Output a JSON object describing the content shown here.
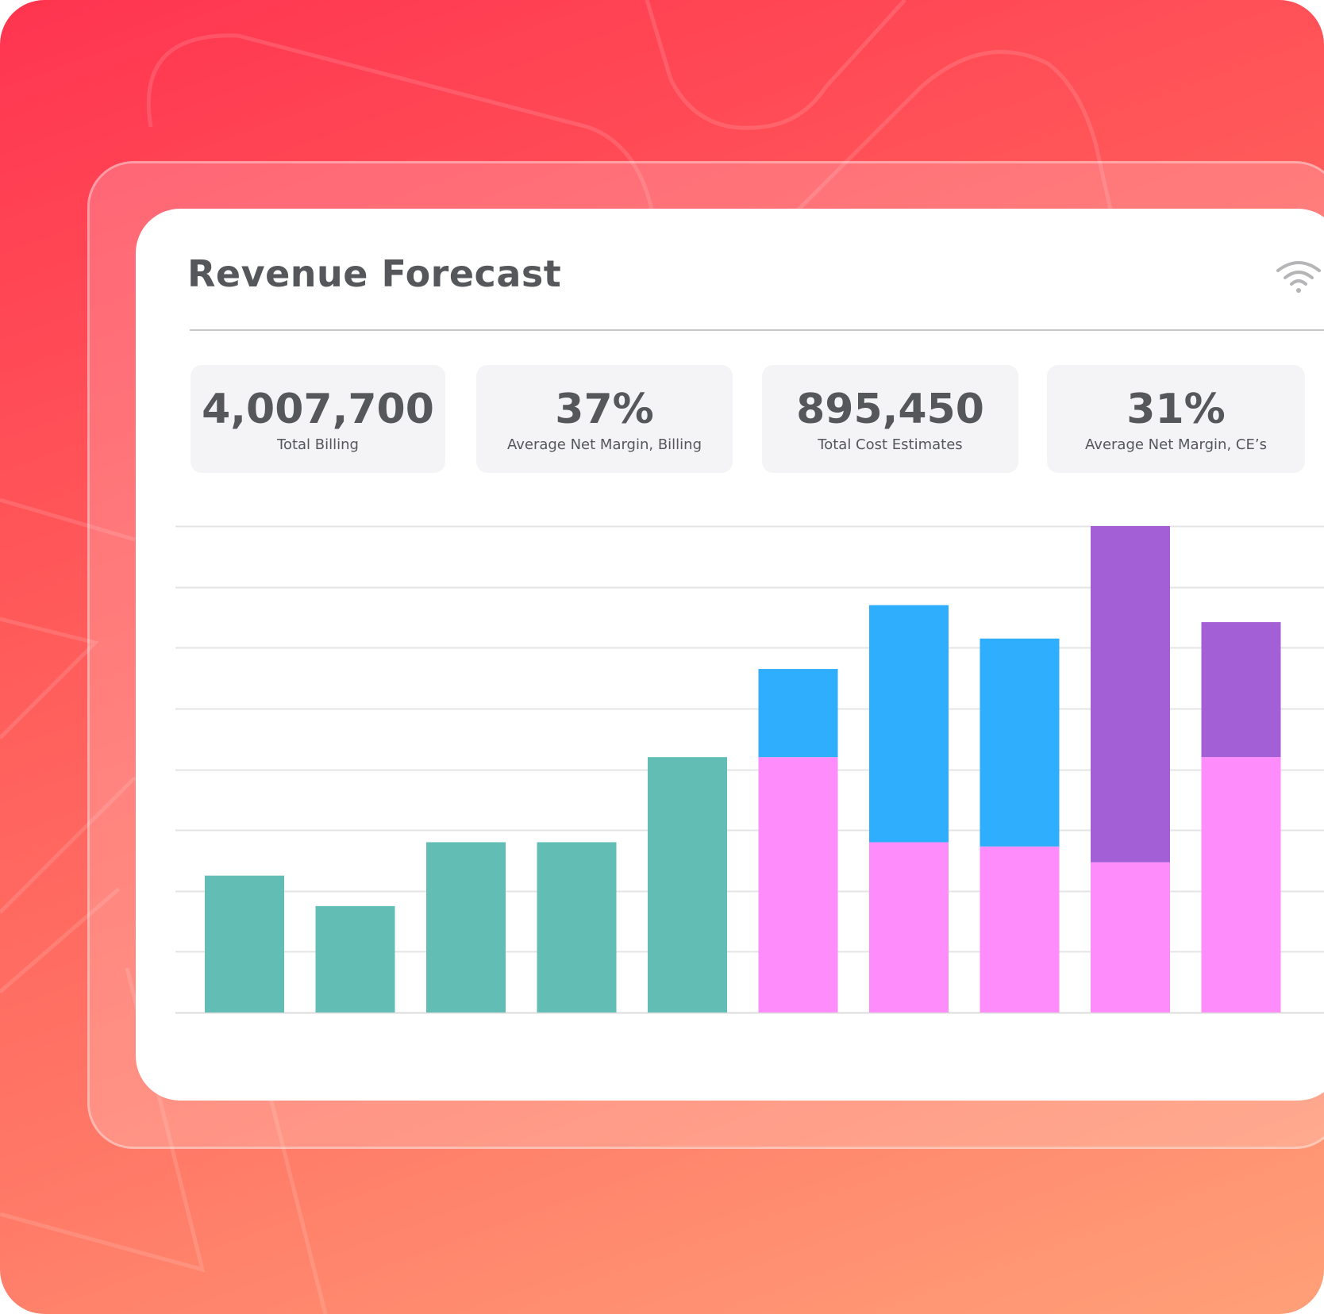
{
  "card": {
    "title": "Revenue Forecast",
    "header_icon": "wifi-icon"
  },
  "kpis": [
    {
      "value": "4,007,700",
      "label": "Total Billing"
    },
    {
      "value": "37%",
      "label": "Average Net Margin, Billing"
    },
    {
      "value": "895,450",
      "label": "Total Cost Estimates"
    },
    {
      "value": "31%",
      "label": "Average Net Margin, CE’s"
    }
  ],
  "colors": {
    "teal": "#62bdb4",
    "pink": "#ff8cfb",
    "blue": "#2eaefc",
    "purple": "#a35fd6",
    "gridline": "#e4e4e6",
    "text": "#55575b"
  },
  "chart_data": {
    "type": "bar",
    "stacked": true,
    "categories": [
      "",
      "",
      "",
      "",
      "",
      "",
      "",
      "",
      "",
      ""
    ],
    "ylim": [
      0,
      8
    ],
    "grid": true,
    "series": [
      {
        "color": "#62bdb4",
        "values": [
          2.25,
          1.75,
          2.8,
          2.8,
          4.2,
          0,
          0,
          0,
          0,
          0
        ]
      },
      {
        "color": "#ff8cfb",
        "values": [
          0,
          0,
          0,
          0,
          0,
          4.2,
          2.8,
          2.73,
          2.47,
          4.2
        ]
      },
      {
        "color": "#2eaefc",
        "values": [
          0,
          0,
          0,
          0,
          0,
          1.45,
          3.9,
          3.42,
          0,
          0
        ]
      },
      {
        "color": "#a35fd6",
        "values": [
          0,
          0,
          0,
          0,
          0,
          0,
          0,
          0,
          5.53,
          2.22
        ]
      }
    ]
  }
}
